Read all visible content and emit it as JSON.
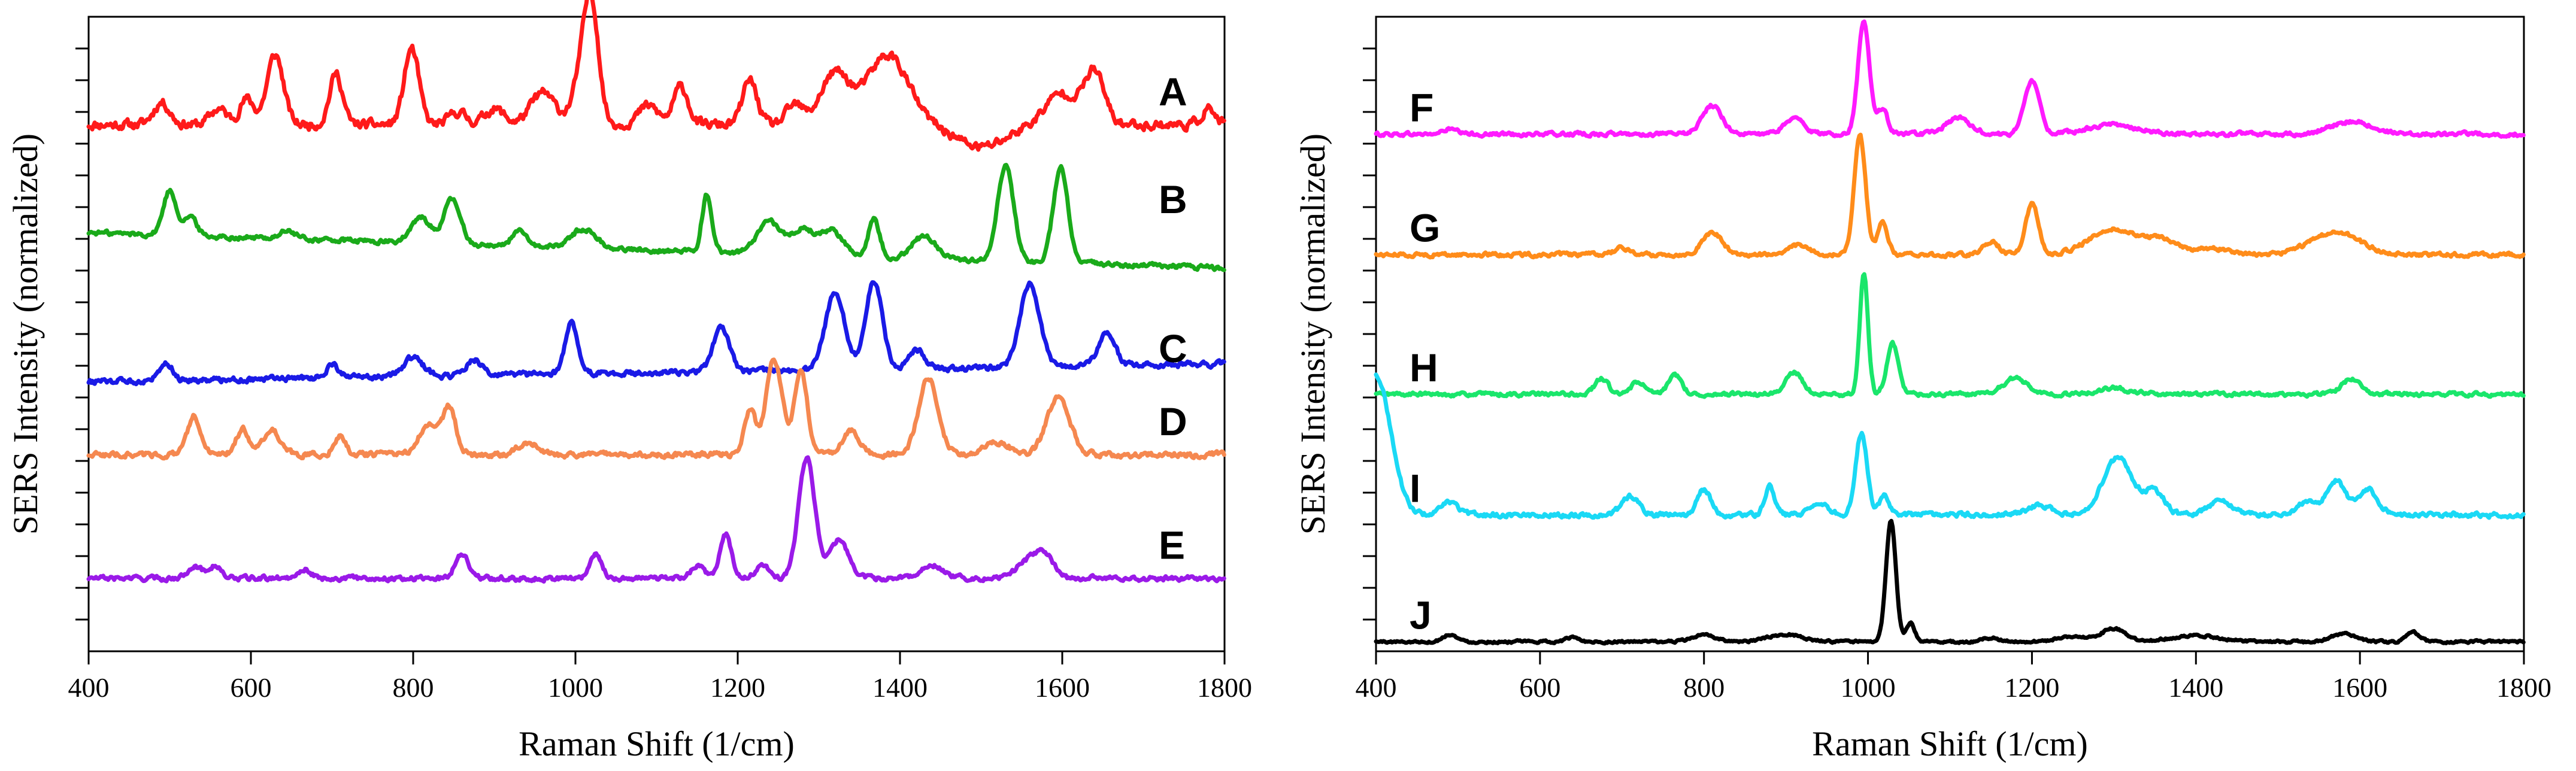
{
  "chart_data": [
    {
      "type": "line",
      "panel": "left",
      "xlabel": "Raman Shift (1/cm)",
      "ylabel": "SERS Intensity (normalized)",
      "xlim": [
        400,
        1800
      ],
      "ylim": [
        0,
        1
      ],
      "x_ticks": [
        400,
        600,
        800,
        1000,
        1200,
        1400,
        1600,
        1800
      ],
      "y_tick_labels_shown": false,
      "series": [
        {
          "name": "A",
          "color": "#ff1a1a",
          "offset": 0.83,
          "baseline_slope": 0,
          "noise": 0.006,
          "peaks": [
            [
              490,
              0.035,
              10
            ],
            [
              560,
              0.025,
              10
            ],
            [
              595,
              0.04,
              9
            ],
            [
              630,
              0.11,
              10
            ],
            [
              705,
              0.08,
              8
            ],
            [
              798,
              0.12,
              9
            ],
            [
              855,
              0.02,
              10
            ],
            [
              900,
              0.025,
              12
            ],
            [
              960,
              0.05,
              15
            ],
            [
              1010,
              0.08,
              12
            ],
            [
              1020,
              0.15,
              9
            ],
            [
              1090,
              0.03,
              12
            ],
            [
              1130,
              0.06,
              9
            ],
            [
              1215,
              0.07,
              9
            ],
            [
              1270,
              0.03,
              10
            ],
            [
              1320,
              0.08,
              18
            ],
            [
              1385,
              0.11,
              25
            ],
            [
              1500,
              -0.035,
              30
            ],
            [
              1600,
              0.05,
              20
            ],
            [
              1640,
              0.08,
              12
            ],
            [
              1780,
              0.025,
              8
            ]
          ]
        },
        {
          "name": "B",
          "color": "#1aaa1a",
          "offset": 0.66,
          "baseline_slope": -4e-05,
          "noise": 0.003,
          "peaks": [
            [
              500,
              0.07,
              8
            ],
            [
              525,
              0.03,
              8
            ],
            [
              645,
              0.012,
              10
            ],
            [
              810,
              0.04,
              12
            ],
            [
              848,
              0.07,
              10
            ],
            [
              930,
              0.025,
              8
            ],
            [
              1010,
              0.03,
              15
            ],
            [
              1162,
              0.09,
              6
            ],
            [
              1240,
              0.05,
              15
            ],
            [
              1280,
              0.04,
              12
            ],
            [
              1315,
              0.04,
              15
            ],
            [
              1368,
              0.06,
              7
            ],
            [
              1430,
              0.035,
              15
            ],
            [
              1530,
              0.15,
              10
            ],
            [
              1598,
              0.15,
              9
            ]
          ]
        },
        {
          "name": "C",
          "color": "#1a1ae6",
          "offset": 0.425,
          "baseline_slope": 2e-05,
          "noise": 0.0035,
          "peaks": [
            [
              495,
              0.03,
              8
            ],
            [
              700,
              0.02,
              8
            ],
            [
              800,
              0.03,
              12
            ],
            [
              875,
              0.025,
              10
            ],
            [
              995,
              0.08,
              8
            ],
            [
              1180,
              0.07,
              10
            ],
            [
              1320,
              0.12,
              12
            ],
            [
              1368,
              0.14,
              10
            ],
            [
              1420,
              0.03,
              10
            ],
            [
              1560,
              0.13,
              12
            ],
            [
              1655,
              0.05,
              10
            ]
          ]
        },
        {
          "name": "D",
          "color": "#f58850",
          "offset": 0.31,
          "baseline_slope": 0,
          "noise": 0.0035,
          "peaks": [
            [
              530,
              0.06,
              8
            ],
            [
              590,
              0.04,
              8
            ],
            [
              625,
              0.04,
              10
            ],
            [
              710,
              0.03,
              7
            ],
            [
              820,
              0.05,
              12
            ],
            [
              845,
              0.07,
              8
            ],
            [
              940,
              0.02,
              12
            ],
            [
              1215,
              0.07,
              7
            ],
            [
              1245,
              0.15,
              10
            ],
            [
              1278,
              0.13,
              8
            ],
            [
              1340,
              0.04,
              10
            ],
            [
              1435,
              0.12,
              12
            ],
            [
              1520,
              0.02,
              15
            ],
            [
              1595,
              0.09,
              14
            ]
          ]
        },
        {
          "name": "E",
          "color": "#9a1ae8",
          "offset": 0.115,
          "baseline_slope": 0,
          "noise": 0.003,
          "peaks": [
            [
              530,
              0.02,
              8
            ],
            [
              555,
              0.02,
              8
            ],
            [
              665,
              0.015,
              8
            ],
            [
              860,
              0.04,
              8
            ],
            [
              1025,
              0.04,
              7
            ],
            [
              1150,
              0.02,
              8
            ],
            [
              1185,
              0.07,
              7
            ],
            [
              1230,
              0.02,
              8
            ],
            [
              1285,
              0.19,
              10
            ],
            [
              1325,
              0.06,
              12
            ],
            [
              1440,
              0.02,
              15
            ],
            [
              1560,
              0.03,
              15
            ],
            [
              1580,
              0.03,
              10
            ]
          ]
        }
      ]
    },
    {
      "type": "line",
      "panel": "right",
      "xlabel": "Raman Shift (1/cm)",
      "ylabel": "SERS Intensity (normalized)",
      "xlim": [
        400,
        1800
      ],
      "ylim": [
        0,
        1
      ],
      "x_ticks": [
        400,
        600,
        800,
        1000,
        1200,
        1400,
        1600,
        1800
      ],
      "y_tick_labels_shown": false,
      "series": [
        {
          "name": "F",
          "color": "#ff1aff",
          "offset": 0.815,
          "baseline_slope": 0,
          "noise": 0.0025,
          "peaks": [
            [
              490,
              0.008,
              8
            ],
            [
              810,
              0.045,
              12
            ],
            [
              910,
              0.025,
              12
            ],
            [
              995,
              0.18,
              7
            ],
            [
              1018,
              0.04,
              6
            ],
            [
              1110,
              0.025,
              15
            ],
            [
              1200,
              0.085,
              9
            ],
            [
              1300,
              0.015,
              30
            ],
            [
              1590,
              0.02,
              25
            ]
          ]
        },
        {
          "name": "G",
          "color": "#ff8c1a",
          "offset": 0.625,
          "baseline_slope": 0,
          "noise": 0.0025,
          "peaks": [
            [
              700,
              0.01,
              10
            ],
            [
              810,
              0.035,
              12
            ],
            [
              915,
              0.015,
              12
            ],
            [
              990,
              0.19,
              7
            ],
            [
              1018,
              0.05,
              6
            ],
            [
              1150,
              0.02,
              10
            ],
            [
              1200,
              0.08,
              8
            ],
            [
              1300,
              0.04,
              30
            ],
            [
              1360,
              0.02,
              20
            ],
            [
              1420,
              0.01,
              20
            ],
            [
              1570,
              0.035,
              30
            ]
          ]
        },
        {
          "name": "H",
          "color": "#1ae66b",
          "offset": 0.405,
          "baseline_slope": 0,
          "noise": 0.0025,
          "peaks": [
            [
              675,
              0.025,
              8
            ],
            [
              720,
              0.02,
              8
            ],
            [
              765,
              0.03,
              8
            ],
            [
              910,
              0.035,
              10
            ],
            [
              995,
              0.19,
              5
            ],
            [
              1030,
              0.08,
              7
            ],
            [
              1180,
              0.025,
              15
            ],
            [
              1300,
              0.01,
              20
            ],
            [
              1590,
              0.025,
              12
            ]
          ]
        },
        {
          "name": "I",
          "color": "#1ad9f5",
          "offset": 0.215,
          "baseline_slope": 0,
          "noise": 0.003,
          "peaks": [
            [
              400,
              0.22,
              18
            ],
            [
              490,
              0.02,
              10
            ],
            [
              710,
              0.03,
              10
            ],
            [
              800,
              0.04,
              8
            ],
            [
              880,
              0.045,
              6
            ],
            [
              940,
              0.02,
              10
            ],
            [
              992,
              0.13,
              7
            ],
            [
              1020,
              0.03,
              6
            ],
            [
              1210,
              0.015,
              15
            ],
            [
              1305,
              0.09,
              18
            ],
            [
              1350,
              0.035,
              12
            ],
            [
              1430,
              0.02,
              15
            ],
            [
              1535,
              0.02,
              10
            ],
            [
              1570,
              0.055,
              12
            ],
            [
              1610,
              0.04,
              12
            ]
          ]
        },
        {
          "name": "J",
          "color": "#000000",
          "offset": 0.015,
          "baseline_slope": 0,
          "noise": 0.0015,
          "peaks": [
            [
              490,
              0.012,
              8
            ],
            [
              640,
              0.007,
              8
            ],
            [
              800,
              0.01,
              15
            ],
            [
              900,
              0.012,
              20
            ],
            [
              1028,
              0.19,
              6
            ],
            [
              1052,
              0.03,
              5
            ],
            [
              1150,
              0.006,
              10
            ],
            [
              1250,
              0.008,
              20
            ],
            [
              1300,
              0.02,
              15
            ],
            [
              1400,
              0.01,
              30
            ],
            [
              1580,
              0.012,
              15
            ],
            [
              1665,
              0.015,
              8
            ]
          ]
        }
      ]
    }
  ]
}
